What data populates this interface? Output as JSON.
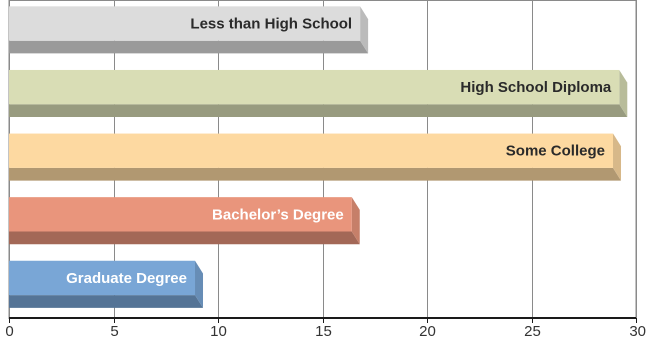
{
  "chart_data": {
    "type": "bar",
    "orientation": "horizontal",
    "categories": [
      "Less than High School",
      "High School Diploma",
      "Some College",
      "Bachelor’s Degree",
      "Graduate Degree"
    ],
    "values": [
      16.8,
      29.2,
      28.9,
      16.4,
      8.9
    ],
    "colors": [
      "#dcdcdc",
      "#d9ddb5",
      "#fdd9a1",
      "#e9957c",
      "#79a6d6"
    ],
    "xlim": [
      0,
      30
    ],
    "xticks": [
      "0",
      "5",
      "10",
      "15",
      "20",
      "25",
      "30"
    ],
    "grid": true,
    "title": "",
    "xlabel": "",
    "ylabel": ""
  }
}
